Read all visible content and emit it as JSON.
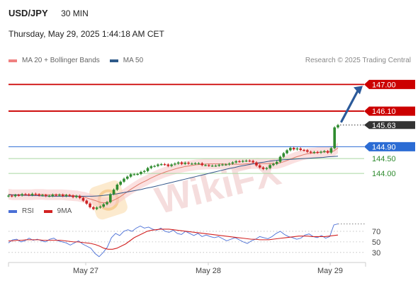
{
  "header": {
    "symbol": "USD/JPY",
    "timeframe": "30 MIN",
    "datetime": "Thursday, May 29, 2025 1:44:18 AM CET"
  },
  "legend": {
    "items": [
      {
        "label": "MA 20 + Bollinger Bands",
        "color": "#f08080"
      },
      {
        "label": "MA 50",
        "color": "#2e5a8a"
      }
    ],
    "credit": "Research © 2025 Trading Central"
  },
  "watermark": "WikiFX",
  "colors": {
    "resistance": "#cc0000",
    "pivot": "#2b6cd4",
    "support": "#2e8b2e",
    "support_line": "#a8d8a0",
    "bull": "#2e8b2e",
    "bear": "#cc2222",
    "ma20": "#e07a6a",
    "ma50": "#34578a",
    "band": "#f7c6c6",
    "rsi": "#4a6fd6",
    "rsi_ma": "#d22222",
    "current": "#333333",
    "arrow": "#2b5a9a"
  },
  "chart_data": [
    {
      "type": "candlestick",
      "y_range": [
        143.0,
        147.7
      ],
      "x_tick_labels": [
        "May 27",
        "May 28",
        "May 29"
      ],
      "levels": [
        {
          "label": "147.00",
          "value": 147.0,
          "kind": "resistance"
        },
        {
          "label": "146.10",
          "value": 146.1,
          "kind": "resistance"
        },
        {
          "label": "145.63",
          "value": 145.63,
          "kind": "current"
        },
        {
          "label": "144.90",
          "value": 144.9,
          "kind": "pivot"
        },
        {
          "label": "144.50",
          "value": 144.5,
          "kind": "support"
        },
        {
          "label": "144.00",
          "value": 144.0,
          "kind": "support"
        }
      ],
      "close_series": [
        143.25,
        143.23,
        143.27,
        143.26,
        143.3,
        143.29,
        143.27,
        143.31,
        143.29,
        143.26,
        143.27,
        143.24,
        143.24,
        143.28,
        143.26,
        143.28,
        143.24,
        143.27,
        143.25,
        143.2,
        143.24,
        143.17,
        143.08,
        142.98,
        142.86,
        142.8,
        142.85,
        142.88,
        142.96,
        143.03,
        143.3,
        143.45,
        143.62,
        143.72,
        143.82,
        143.89,
        143.97,
        143.97,
        143.98,
        144.05,
        144.08,
        144.18,
        144.24,
        144.25,
        144.3,
        144.31,
        144.3,
        144.25,
        144.3,
        144.33,
        144.37,
        144.32,
        144.36,
        144.33,
        144.33,
        144.34,
        144.34,
        144.28,
        144.28,
        144.26,
        144.26,
        144.26,
        144.29,
        144.3,
        144.3,
        144.33,
        144.37,
        144.41,
        144.4,
        144.42,
        144.43,
        144.42,
        144.37,
        144.27,
        144.2,
        144.15,
        144.18,
        144.28,
        144.32,
        144.39,
        144.56,
        144.68,
        144.78,
        144.86,
        144.81,
        144.84,
        144.79,
        144.78,
        144.73,
        144.7,
        144.72,
        144.7,
        144.73,
        144.75,
        144.7,
        144.85,
        145.55,
        145.63
      ],
      "ma20_series": [
        143.3,
        143.28,
        143.28,
        143.28,
        143.28,
        143.28,
        143.28,
        143.29,
        143.29,
        143.29,
        143.28,
        143.28,
        143.28,
        143.28,
        143.28,
        143.27,
        143.26,
        143.25,
        143.24,
        143.21,
        143.19,
        143.15,
        143.11,
        143.07,
        143.02,
        143.01,
        143.02,
        143.07,
        143.13,
        143.2,
        143.29,
        143.38,
        143.47,
        143.55,
        143.63,
        143.7,
        143.76,
        143.83,
        143.89,
        143.95,
        144.0,
        144.05,
        144.09,
        144.13,
        144.17,
        144.2,
        144.23,
        144.25,
        144.27,
        144.29,
        144.3,
        144.31,
        144.32,
        144.32,
        144.32,
        144.32,
        144.32,
        144.31,
        144.31,
        144.31,
        144.31,
        144.31,
        144.32,
        144.33,
        144.33,
        144.34,
        144.33,
        144.33,
        144.33,
        144.33,
        144.33,
        144.36,
        144.4,
        144.45,
        144.5,
        144.55,
        144.59,
        144.63,
        144.66,
        144.68,
        144.69,
        144.71,
        144.72,
        144.73,
        144.74,
        144.76,
        144.86
      ],
      "ma50_series": [
        143.28,
        143.27,
        143.27,
        143.26,
        143.26,
        143.25,
        143.25,
        143.24,
        143.24,
        143.23,
        143.23,
        143.23,
        143.23,
        143.23,
        143.23,
        143.23,
        143.23,
        143.23,
        143.24,
        143.25,
        143.27,
        143.29,
        143.31,
        143.34,
        143.37,
        143.4,
        143.43,
        143.46,
        143.5,
        143.53,
        143.57,
        143.61,
        143.65,
        143.69,
        143.73,
        143.77,
        143.81,
        143.85,
        143.89,
        143.93,
        143.97,
        144.01,
        144.05,
        144.09,
        144.13,
        144.17,
        144.2,
        144.24,
        144.27,
        144.3,
        144.33,
        144.36,
        144.38,
        144.41,
        144.43,
        144.45,
        144.46,
        144.47,
        144.48,
        144.49,
        144.5,
        144.51,
        144.52,
        144.53,
        144.54,
        144.56,
        144.57,
        144.58
      ]
    },
    {
      "type": "line",
      "y_range": [
        15,
        90
      ],
      "y_tick_labels": [
        "70",
        "50",
        "30"
      ],
      "series": [
        {
          "name": "RSI",
          "values": [
            48,
            54,
            55,
            50,
            52,
            57,
            53,
            55,
            52,
            50,
            55,
            57,
            52,
            50,
            48,
            44,
            48,
            52,
            46,
            42,
            38,
            28,
            22,
            30,
            40,
            58,
            66,
            62,
            70,
            73,
            70,
            76,
            80,
            76,
            78,
            74,
            72,
            76,
            70,
            68,
            72,
            66,
            64,
            70,
            66,
            62,
            66,
            60,
            63,
            60,
            58,
            60,
            56,
            52,
            55,
            58,
            54,
            50,
            47,
            52,
            55,
            60,
            58,
            56,
            60,
            66,
            70,
            64,
            60,
            58,
            55,
            57,
            63,
            65,
            60,
            58,
            62,
            57,
            60,
            82,
            84
          ]
        },
        {
          "name": "9MA",
          "values": [
            52,
            52,
            53,
            53,
            54,
            54,
            54,
            54,
            53,
            53,
            53,
            53,
            53,
            52,
            51,
            50,
            50,
            49,
            48,
            47,
            45,
            42,
            38,
            36,
            36,
            38,
            42,
            46,
            52,
            58,
            62,
            66,
            70,
            72,
            73,
            74,
            74,
            74,
            73,
            72,
            71,
            70,
            69,
            68,
            67,
            66,
            65,
            64,
            63,
            62,
            61,
            60,
            59,
            58,
            57,
            56,
            55,
            55,
            54,
            54,
            54,
            55,
            56,
            57,
            58,
            59,
            60,
            61,
            61,
            61,
            60,
            60,
            60,
            60,
            61,
            62,
            63
          ]
        }
      ]
    }
  ]
}
